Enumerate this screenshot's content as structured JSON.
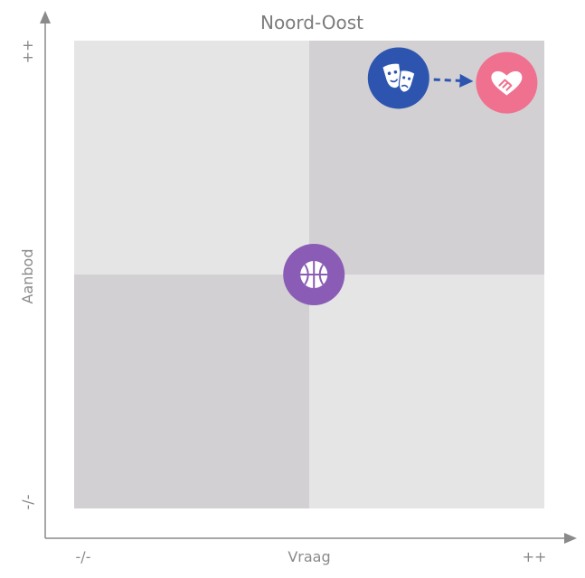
{
  "chart_data": {
    "type": "scatter",
    "title": "Noord-Oost",
    "xlabel": "Vraag",
    "ylabel": "Aanbod",
    "x_ticks": [
      "-/-",
      "++"
    ],
    "y_ticks": [
      "-/-",
      "++"
    ],
    "xlim": [
      0,
      1
    ],
    "ylim": [
      0,
      1
    ],
    "quadrants": [
      {
        "id": "top-left",
        "color": "#e6e5e6"
      },
      {
        "id": "top-right",
        "color": "#d2d0d2"
      },
      {
        "id": "bottom-left",
        "color": "#d2d0d2"
      },
      {
        "id": "bottom-right",
        "color": "#e6e5e6"
      }
    ],
    "points": [
      {
        "icon": "theater-masks-icon",
        "x": 0.69,
        "y": 0.92,
        "color": "#2d55b0"
      },
      {
        "icon": "heart-handshake-icon",
        "x": 0.92,
        "y": 0.91,
        "color": "#f0708f"
      },
      {
        "icon": "basketball-icon",
        "x": 0.51,
        "y": 0.5,
        "color": "#8a5cb5"
      }
    ],
    "arrows": [
      {
        "from": 0,
        "to": 1,
        "style": "dashed",
        "color": "#2d55b0"
      }
    ]
  }
}
